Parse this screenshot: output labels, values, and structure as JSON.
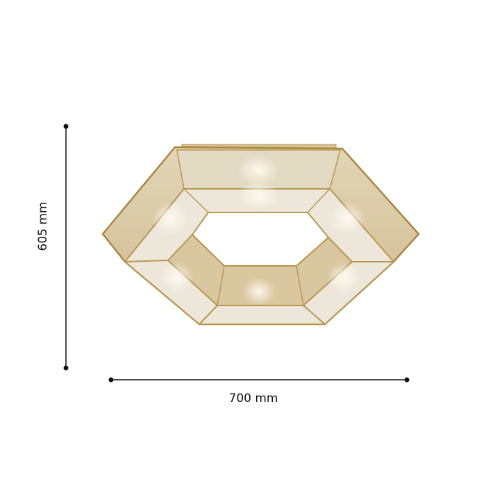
{
  "dimensions": {
    "height_label": "605 mm",
    "width_label": "700 mm"
  },
  "colors": {
    "frame": "#b8964f",
    "panel_dark": "#d8c8a2",
    "panel_light": "#ece7da",
    "line": "#111111"
  },
  "product": {
    "name_icon": "hexagonal-ceiling-lamp"
  }
}
